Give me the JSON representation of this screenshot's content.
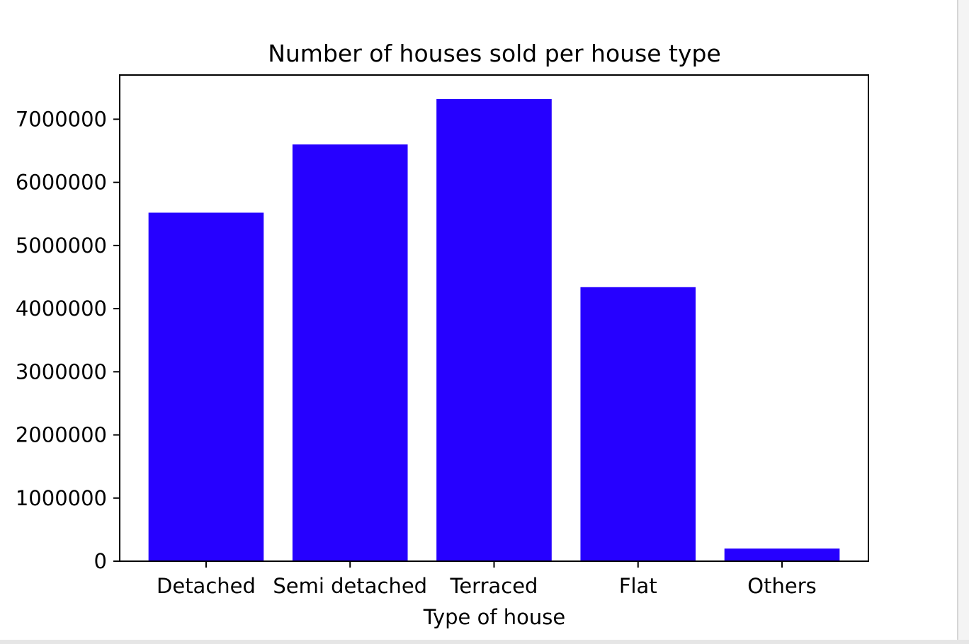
{
  "chart_data": {
    "type": "bar",
    "title": "Number of houses sold per house type",
    "xlabel": "Type of house",
    "ylabel": "",
    "categories": [
      "Detached",
      "Semi detached",
      "Terraced",
      "Flat",
      "Others"
    ],
    "values": [
      5520000,
      6600000,
      7320000,
      4340000,
      200000
    ],
    "ylim": [
      0,
      7700000
    ],
    "yticks": [
      0,
      1000000,
      2000000,
      3000000,
      4000000,
      5000000,
      6000000,
      7000000
    ],
    "ytick_labels": [
      "0",
      "1000000",
      "2000000",
      "3000000",
      "4000000",
      "5000000",
      "6000000",
      "7000000"
    ],
    "bar_color": "#2600ff",
    "grid": false,
    "legend": "none"
  }
}
